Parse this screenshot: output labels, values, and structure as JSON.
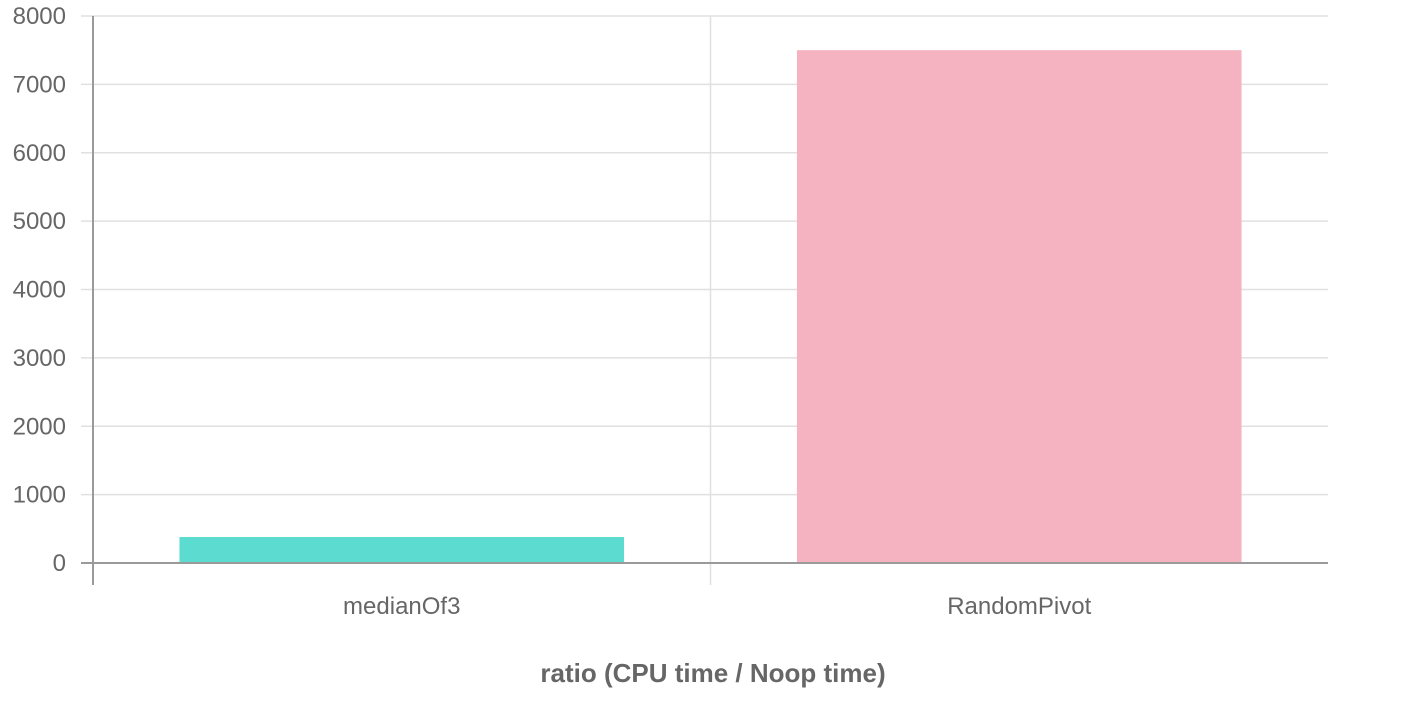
{
  "chart_data": {
    "type": "bar",
    "categories": [
      "medianOf3",
      "RandomPivot"
    ],
    "values": [
      380,
      7500
    ],
    "colors": [
      "#5cdbd0",
      "#f5b3c1"
    ],
    "xlabel": "ratio (CPU time / Noop time)",
    "ylabel": "",
    "ylim": [
      0,
      8000
    ],
    "yticks": [
      "0",
      "1000",
      "2000",
      "3000",
      "4000",
      "5000",
      "6000",
      "7000",
      "8000"
    ],
    "grid": true,
    "legend": "none"
  },
  "colors": {
    "grid": "#e0e0e0",
    "axis": "#9a9a9a",
    "text": "#666666"
  }
}
